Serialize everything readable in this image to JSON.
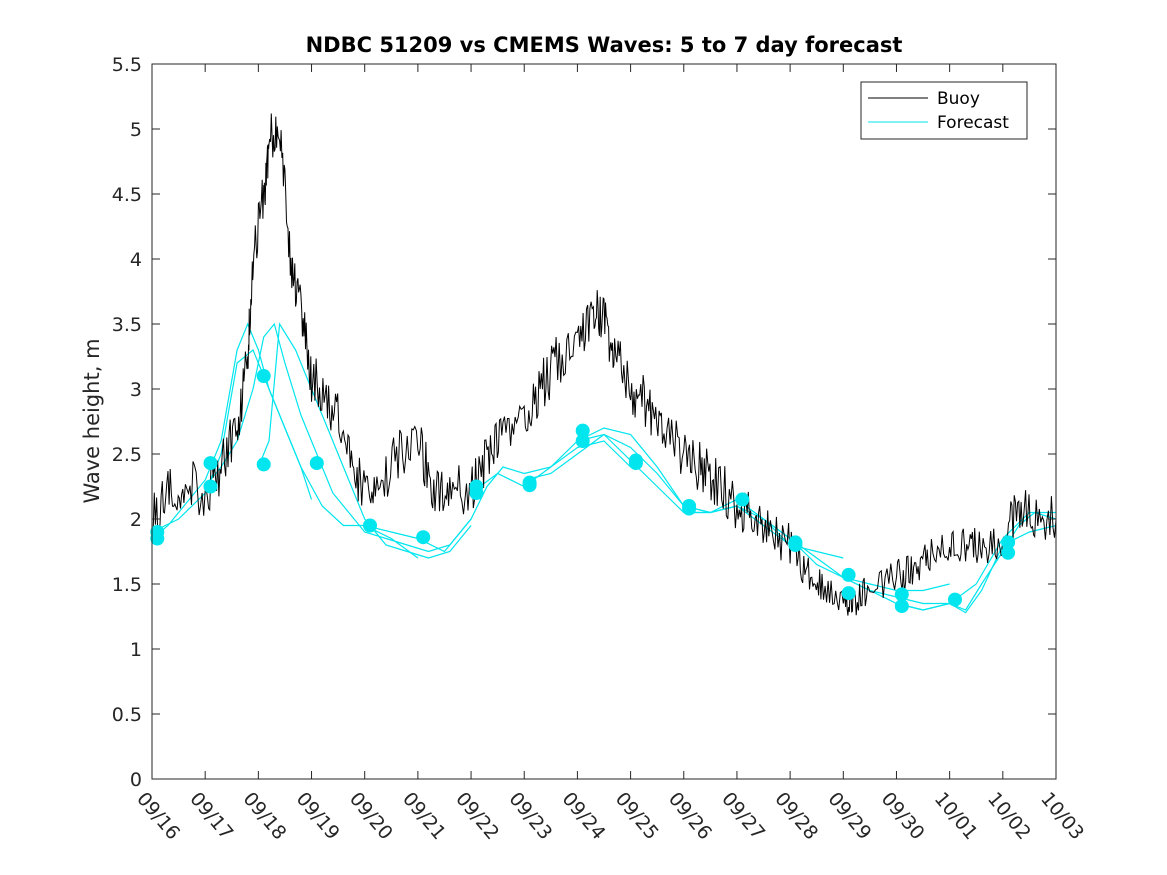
{
  "chart_data": {
    "type": "line",
    "title": "NDBC 51209 vs CMEMS Waves: 5 to 7 day forecast",
    "xlabel": "",
    "ylabel": "Wave height, m",
    "xlim": [
      0,
      17
    ],
    "ylim": [
      0,
      5.5
    ],
    "x_tick_values": [
      0,
      1,
      2,
      3,
      4,
      5,
      6,
      7,
      8,
      9,
      10,
      11,
      12,
      13,
      14,
      15,
      16,
      17
    ],
    "x_tick_labels": [
      "09/16",
      "09/17",
      "09/18",
      "09/19",
      "09/20",
      "09/21",
      "09/22",
      "09/23",
      "09/24",
      "09/25",
      "09/26",
      "09/27",
      "09/28",
      "09/29",
      "09/30",
      "10/01",
      "10/02",
      "10/03"
    ],
    "y_tick_values": [
      0,
      0.5,
      1,
      1.5,
      2,
      2.5,
      3,
      3.5,
      4,
      4.5,
      5,
      5.5
    ],
    "y_tick_labels": [
      "0",
      "0.5",
      "1",
      "1.5",
      "2",
      "2.5",
      "3",
      "3.5",
      "4",
      "4.5",
      "5",
      "5.5"
    ],
    "legend": {
      "position": "top-right",
      "entries": [
        "Buoy",
        "Forecast"
      ]
    },
    "colors": {
      "buoy": "#000000",
      "forecast": "#00e5ee",
      "axis": "#262626"
    },
    "series": [
      {
        "name": "Buoy",
        "x": [
          0,
          0.3,
          0.6,
          1.0,
          1.3,
          1.6,
          1.8,
          1.9,
          2.1,
          2.2,
          2.4,
          2.6,
          2.8,
          3.0,
          3.3,
          3.6,
          3.9,
          4.2,
          4.6,
          5.0,
          5.3,
          5.6,
          6.0,
          6.3,
          6.6,
          7.0,
          7.3,
          7.6,
          8.0,
          8.3,
          8.5,
          8.7,
          9.0,
          9.3,
          9.6,
          10.0,
          10.3,
          10.6,
          11.0,
          11.3,
          11.6,
          12.0,
          12.3,
          12.6,
          13.0,
          13.2,
          13.5,
          14.0,
          14.3,
          14.6,
          15.0,
          15.3,
          15.6,
          16.0,
          16.3,
          16.6,
          17.0
        ],
        "y": [
          2.0,
          2.2,
          2.3,
          2.2,
          2.4,
          2.7,
          3.2,
          4.0,
          4.5,
          4.9,
          5.1,
          4.0,
          3.6,
          3.1,
          2.9,
          2.7,
          2.3,
          2.2,
          2.5,
          2.6,
          2.2,
          2.3,
          2.2,
          2.5,
          2.6,
          2.8,
          3.0,
          3.2,
          3.3,
          3.6,
          3.5,
          3.3,
          3.0,
          2.9,
          2.7,
          2.5,
          2.4,
          2.3,
          2.1,
          2.0,
          1.9,
          1.8,
          1.6,
          1.5,
          1.4,
          1.35,
          1.5,
          1.55,
          1.6,
          1.75,
          1.85,
          1.8,
          1.8,
          1.85,
          2.1,
          2.0,
          2.0
        ]
      },
      {
        "name": "Forecast",
        "x": [
          0,
          0.5,
          1.0,
          1.5,
          1.8,
          2.1,
          2.4,
          2.8,
          3.2,
          3.6,
          4.0,
          4.5,
          5.0,
          5.5,
          6.0,
          6.5,
          7.0,
          7.5,
          8.0,
          8.5,
          9.0,
          9.5,
          10.0,
          10.5,
          11.0,
          11.5,
          12.0,
          12.5,
          13.0,
          13.5,
          14.0,
          14.5,
          15.0,
          15.5,
          16.0,
          16.5,
          17.0
        ],
        "y": [
          1.85,
          2.0,
          2.2,
          2.5,
          3.3,
          3.1,
          2.6,
          2.2,
          2.0,
          2.05,
          1.95,
          1.8,
          1.85,
          1.75,
          2.0,
          2.3,
          2.35,
          2.45,
          2.6,
          2.55,
          2.4,
          2.25,
          2.1,
          2.05,
          2.1,
          2.0,
          1.8,
          1.75,
          1.55,
          1.5,
          1.4,
          1.4,
          1.35,
          1.45,
          1.75,
          2.0,
          1.95
        ]
      }
    ],
    "forecast_runs": [
      {
        "x": [
          0,
          0.3,
          0.6,
          1.0,
          1.3,
          1.6,
          1.8,
          2.0,
          2.2,
          2.5,
          2.8,
          3.0
        ],
        "y": [
          1.85,
          1.95,
          2.1,
          2.3,
          2.6,
          3.3,
          3.5,
          3.3,
          3.0,
          2.7,
          2.4,
          2.15
        ]
      },
      {
        "x": [
          0,
          0.5,
          1.0,
          1.3,
          1.6,
          1.9,
          2.1,
          2.4,
          2.8,
          3.2,
          3.6,
          4.0,
          4.5,
          5.0
        ],
        "y": [
          1.9,
          2.0,
          2.2,
          2.5,
          3.2,
          3.3,
          3.1,
          2.8,
          2.4,
          2.1,
          1.95,
          1.95,
          1.85,
          1.7
        ]
      },
      {
        "x": [
          1.0,
          1.3,
          1.6,
          1.9,
          2.1,
          2.3,
          2.5,
          2.8,
          3.1,
          3.4,
          3.7,
          4.0,
          4.4,
          4.8,
          5.2,
          5.6,
          6.0
        ],
        "y": [
          2.25,
          2.4,
          2.6,
          3.0,
          3.4,
          3.5,
          3.2,
          2.8,
          2.5,
          2.2,
          2.05,
          1.9,
          1.85,
          1.8,
          1.75,
          1.8,
          2.0
        ]
      },
      {
        "x": [
          2.0,
          2.2,
          2.4,
          2.7,
          3.0,
          3.3,
          3.6,
          4.0,
          4.4,
          4.8,
          5.2,
          5.6,
          6.0
        ],
        "y": [
          2.4,
          2.6,
          3.5,
          3.3,
          3.0,
          2.7,
          2.4,
          2.0,
          1.8,
          1.75,
          1.7,
          1.75,
          1.95
        ]
      },
      {
        "x": [
          4.0,
          4.5,
          5.0,
          5.5,
          6.0,
          6.3,
          6.6,
          7.0,
          7.5,
          8.0,
          8.5,
          9.0
        ],
        "y": [
          1.95,
          1.9,
          1.85,
          1.75,
          2.0,
          2.25,
          2.4,
          2.35,
          2.4,
          2.55,
          2.6,
          2.4
        ]
      },
      {
        "x": [
          6.0,
          6.5,
          7.0,
          7.5,
          8.0,
          8.5,
          9.0,
          9.5,
          10.0,
          10.5,
          11.0
        ],
        "y": [
          2.2,
          2.35,
          2.25,
          2.4,
          2.6,
          2.7,
          2.65,
          2.4,
          2.1,
          2.05,
          2.1
        ]
      },
      {
        "x": [
          7.0,
          7.5,
          8.0,
          8.5,
          9.0,
          9.5,
          10.0,
          10.5,
          11.0,
          11.5,
          12.0
        ],
        "y": [
          2.3,
          2.35,
          2.5,
          2.65,
          2.55,
          2.35,
          2.1,
          2.05,
          2.15,
          2.0,
          1.8
        ]
      },
      {
        "x": [
          8.0,
          8.5,
          9.0,
          9.5,
          10.0,
          10.5,
          11.0,
          11.5,
          12.0,
          12.5,
          13.0
        ],
        "y": [
          2.6,
          2.65,
          2.45,
          2.25,
          2.05,
          2.05,
          2.1,
          1.95,
          1.8,
          1.75,
          1.7
        ]
      },
      {
        "x": [
          10.0,
          10.5,
          11.0,
          11.5,
          12.0,
          12.5,
          13.0,
          13.5,
          14.0,
          14.5,
          15.0
        ],
        "y": [
          2.05,
          2.05,
          2.1,
          2.0,
          1.85,
          1.7,
          1.55,
          1.5,
          1.45,
          1.45,
          1.5
        ]
      },
      {
        "x": [
          11.0,
          11.5,
          12.0,
          12.5,
          13.0,
          13.5,
          14.0,
          14.5,
          15.0,
          15.5,
          16.0,
          16.5,
          17.0
        ],
        "y": [
          2.15,
          2.0,
          1.85,
          1.65,
          1.55,
          1.45,
          1.4,
          1.35,
          1.35,
          1.5,
          1.85,
          2.05,
          2.05
        ]
      },
      {
        "x": [
          13.0,
          13.5,
          14.0,
          14.5,
          15.0,
          15.3,
          15.6,
          16.0,
          16.3,
          16.6,
          17.0
        ],
        "y": [
          1.55,
          1.45,
          1.35,
          1.3,
          1.35,
          1.3,
          1.5,
          1.75,
          1.95,
          2.05,
          2.0
        ]
      },
      {
        "x": [
          14.0,
          14.5,
          15.0,
          15.3,
          15.6,
          16.0,
          16.5,
          17.0
        ],
        "y": [
          1.35,
          1.3,
          1.35,
          1.28,
          1.45,
          1.8,
          1.9,
          1.95
        ]
      }
    ],
    "forecast_markers": {
      "x": [
        0.1,
        0.1,
        1.1,
        1.1,
        2.1,
        2.1,
        3.1,
        4.1,
        5.1,
        6.1,
        6.1,
        7.1,
        7.1,
        8.1,
        8.1,
        9.1,
        9.1,
        10.1,
        10.1,
        11.1,
        12.1,
        12.1,
        13.1,
        13.1,
        14.1,
        14.1,
        15.1,
        16.1,
        16.1
      ],
      "y": [
        1.85,
        1.9,
        2.25,
        2.43,
        2.42,
        3.1,
        2.43,
        1.95,
        1.86,
        2.2,
        2.25,
        2.26,
        2.28,
        2.6,
        2.68,
        2.43,
        2.45,
        2.08,
        2.1,
        2.15,
        1.8,
        1.82,
        1.43,
        1.57,
        1.33,
        1.42,
        1.38,
        1.74,
        1.82
      ]
    }
  }
}
